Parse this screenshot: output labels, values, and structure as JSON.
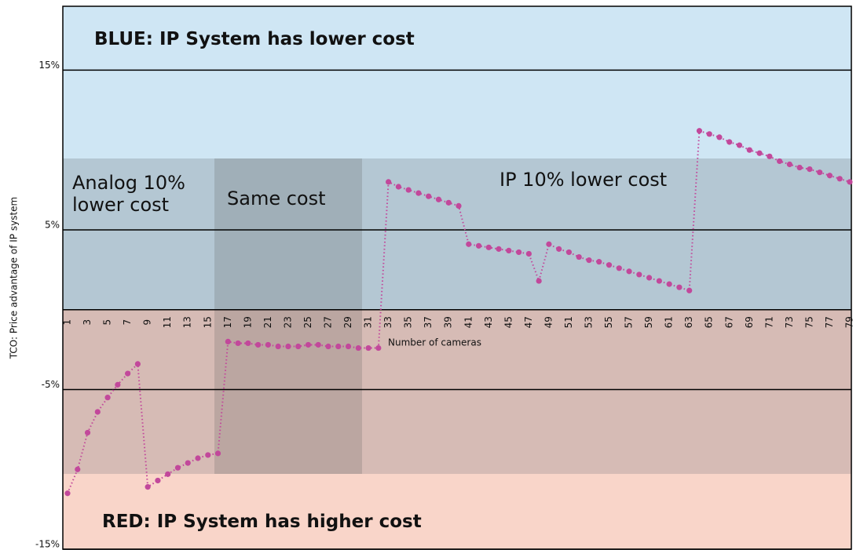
{
  "chart_data": {
    "type": "line",
    "y_label": "TCO: Price advantage of IP system",
    "x_label": "Number of cameras",
    "annotations": [
      "BLUE: IP System has lower cost",
      "RED: IP System has higher cost",
      "Analog 10% lower cost",
      "Same cost",
      "IP 10% lower cost"
    ],
    "categories": [
      "1",
      null,
      "3",
      null,
      "5",
      null,
      "7",
      null,
      "9",
      null,
      "11",
      null,
      "13",
      null,
      "15",
      null,
      "17",
      null,
      "19",
      null,
      "21",
      null,
      "23",
      null,
      "25",
      null,
      "27",
      null,
      "29",
      null,
      "31",
      null,
      "33",
      null,
      "35",
      null,
      "37",
      null,
      "39",
      null,
      "41",
      null,
      "43",
      null,
      "45",
      null,
      "47",
      null,
      "49",
      null,
      "51",
      null,
      "53",
      null,
      "55",
      null,
      "57",
      null,
      "59",
      null,
      "61",
      null,
      "63",
      null,
      "65",
      null,
      "67",
      null,
      "69",
      null,
      "71",
      null,
      "73",
      null,
      "75",
      null,
      "77",
      null,
      "79"
    ],
    "series": [
      {
        "name": "TCO",
        "color": "#c2489b",
        "values": [
          -11.5,
          -10.0,
          -7.7,
          -6.4,
          -5.5,
          -4.7,
          -4.0,
          -3.4,
          -11.1,
          -10.7,
          -10.3,
          -9.9,
          -9.6,
          -9.3,
          -9.1,
          -9.0,
          -2.0,
          -2.1,
          -2.1,
          -2.2,
          -2.2,
          -2.3,
          -2.3,
          -2.3,
          -2.2,
          -2.2,
          -2.3,
          -2.3,
          -2.3,
          -2.4,
          -2.4,
          -2.4,
          8.0,
          7.7,
          7.5,
          7.3,
          7.1,
          6.9,
          6.7,
          6.5,
          4.1,
          4.0,
          3.9,
          3.8,
          3.7,
          3.6,
          3.5,
          1.8,
          4.1,
          3.8,
          3.6,
          3.3,
          3.1,
          3.0,
          2.8,
          2.6,
          2.4,
          2.2,
          2.0,
          1.8,
          1.6,
          1.4,
          1.2,
          11.2,
          11.0,
          10.8,
          10.5,
          10.3,
          10.0,
          9.8,
          9.6,
          9.3,
          9.1,
          8.9,
          8.8,
          8.6,
          8.4,
          8.2,
          8.0
        ]
      }
    ],
    "ylim": [
      -15,
      19
    ],
    "yticks": [
      {
        "value": 15,
        "label": "15%"
      },
      {
        "value": 5,
        "label": "5%"
      },
      {
        "value": -5,
        "label": "-5%"
      },
      {
        "value": -15,
        "label": "-15%"
      }
    ],
    "grid": true
  }
}
